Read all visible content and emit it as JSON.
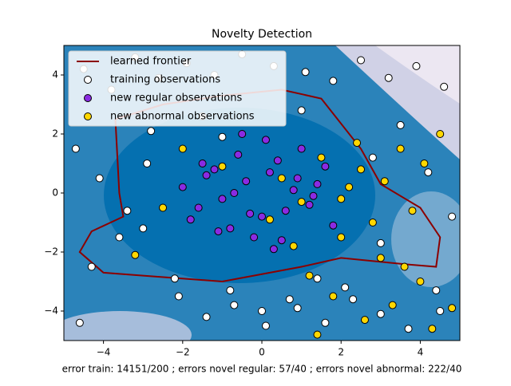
{
  "chart_data": {
    "type": "scatter",
    "title": "Novelty Detection",
    "xlabel": "error train: 14151/200 ; errors novel regular: 57/40 ; errors novel abnormal: 222/40",
    "xlim": [
      -5,
      5
    ],
    "ylim": [
      -5,
      5
    ],
    "xticks": [
      {
        "value": -4,
        "label": "−4"
      },
      {
        "value": -2,
        "label": "−2"
      },
      0,
      2,
      4
    ],
    "yticks": [
      {
        "value": -4,
        "label": "−4"
      },
      {
        "value": -2,
        "label": "−2"
      },
      0,
      2,
      4
    ],
    "legend": "upper left",
    "series": [
      {
        "name": "learned frontier",
        "kind": "line",
        "color": "#8b0000",
        "x": [
          -3.7,
          -3.6,
          -3.5,
          -4.3,
          -4.6,
          -4.0,
          -3.0,
          -1.0,
          1.0,
          2.0,
          3.5,
          4.4,
          4.5,
          4.0,
          3.0,
          2.5,
          1.5,
          0.5,
          -1.0,
          -2.5,
          -3.7
        ],
        "y": [
          2.5,
          0.0,
          -0.8,
          -1.3,
          -2.0,
          -2.7,
          -2.8,
          -3.0,
          -2.5,
          -2.2,
          -2.4,
          -2.5,
          -1.5,
          -0.5,
          0.3,
          1.5,
          3.2,
          3.5,
          3.3,
          3.0,
          2.5
        ]
      },
      {
        "name": "training observations",
        "kind": "points",
        "color": "#ffffff",
        "x": [
          -4.5,
          -3.8,
          -3.2,
          -2.6,
          -1.9,
          -1.2,
          -0.5,
          0.3,
          1.1,
          1.8,
          2.5,
          3.2,
          3.9,
          4.6,
          -4.7,
          -4.1,
          -3.4,
          -2.8,
          -2.1,
          -1.4,
          -0.7,
          0.1,
          0.9,
          1.6,
          2.3,
          3.0,
          3.7,
          4.4,
          -4.3,
          -3.6,
          -2.9,
          -2.2,
          -1.5,
          -0.8,
          0.0,
          0.7,
          1.4,
          2.1,
          2.8,
          3.5,
          4.2,
          4.8,
          -4.6,
          -3.0,
          -1.0,
          1.0,
          3.0,
          4.5
        ],
        "y": [
          4.2,
          3.5,
          4.6,
          3.9,
          4.4,
          4.0,
          4.7,
          4.3,
          4.1,
          3.8,
          4.5,
          3.9,
          4.3,
          3.6,
          1.5,
          0.5,
          -0.6,
          2.1,
          -3.5,
          -4.2,
          -3.8,
          -4.5,
          -3.9,
          -4.4,
          -3.6,
          -4.1,
          -4.6,
          -3.3,
          -2.5,
          -1.5,
          1.0,
          -2.9,
          2.6,
          -3.3,
          -4.0,
          -3.6,
          -2.9,
          -3.2,
          1.2,
          2.3,
          0.7,
          -0.8,
          -4.4,
          -1.2,
          1.9,
          2.8,
          -1.7,
          -4.0
        ]
      },
      {
        "name": "new regular observations",
        "kind": "points",
        "color": "#8a2be2",
        "x": [
          -2,
          -1.6,
          -1.2,
          -0.8,
          -0.4,
          0,
          0.4,
          0.8,
          1.2,
          1.6,
          -1.8,
          -1.4,
          -1,
          -0.6,
          -0.2,
          0.2,
          0.6,
          1,
          1.4,
          1.8,
          -1.5,
          -1.1,
          -0.7,
          -0.3,
          0.1,
          0.5,
          0.9,
          1.3,
          -0.5,
          0.3
        ],
        "y": [
          0.2,
          -0.5,
          0.8,
          -1.2,
          0.4,
          -0.8,
          1.1,
          0.1,
          -0.4,
          0.9,
          -0.9,
          0.6,
          -0.2,
          1.3,
          -1.5,
          0.7,
          -0.6,
          1.5,
          0.3,
          -1.1,
          1.0,
          -1.3,
          0.0,
          -0.7,
          1.8,
          -1.6,
          0.5,
          -0.1,
          2.0,
          -1.9
        ]
      },
      {
        "name": "new abnormal observations",
        "kind": "points",
        "color": "#ffd700",
        "x": [
          0.5,
          1,
          1.5,
          2,
          2.5,
          3,
          3.5,
          4,
          4.5,
          -2.5,
          1.2,
          1.8,
          2.2,
          2.8,
          3.3,
          3.8,
          4.3,
          0.8,
          2.4,
          3.6,
          -1,
          -3.2,
          4.8,
          2.6,
          1.4,
          3.1,
          4.1,
          0.2,
          -2,
          2
        ],
        "y": [
          0.5,
          -0.3,
          1.2,
          -1.5,
          0.8,
          -2.2,
          1.5,
          -3.0,
          2.0,
          -0.5,
          -2.8,
          -3.5,
          0.2,
          -1.0,
          -3.8,
          -0.6,
          -4.6,
          -1.8,
          1.7,
          -2.5,
          0.9,
          -2.1,
          -3.9,
          -4.3,
          -4.8,
          0.4,
          1.0,
          -0.9,
          1.5,
          -0.2
        ]
      }
    ]
  }
}
